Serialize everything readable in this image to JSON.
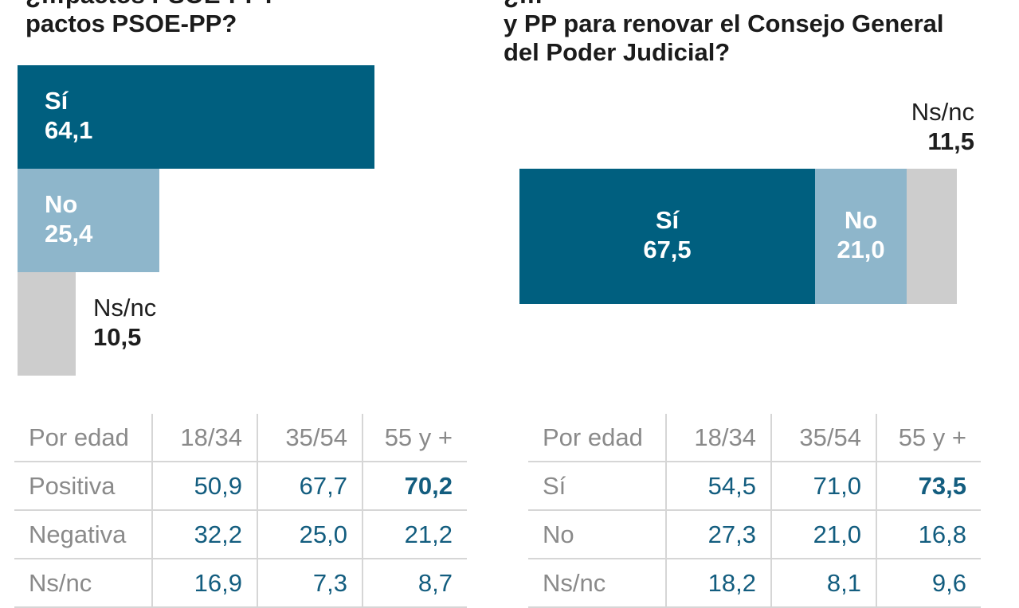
{
  "chart_data": [
    {
      "type": "bar",
      "title_lines": [
        "¿…pactos PSOE-PP?",
        "pactos PSOE-PP?"
      ],
      "categories": [
        "Sí",
        "No",
        "Ns/nc"
      ],
      "values": [
        "64,1",
        "25,4",
        "10,5"
      ],
      "numeric_values": [
        64.1,
        25.4,
        10.5
      ],
      "colors": [
        "#005f7f",
        "#8eb6cb",
        "#cdcdcd"
      ],
      "breakdown": {
        "header": [
          "Por edad",
          "18/34",
          "35/54",
          "55 y +"
        ],
        "rows": [
          {
            "label": "Positiva",
            "values": [
              "50,9",
              "67,7",
              "70,2"
            ],
            "highlight": 2
          },
          {
            "label": "Negativa",
            "values": [
              "32,2",
              "25,0",
              "21,2"
            ],
            "highlight": -1
          },
          {
            "label": "Ns/nc",
            "values": [
              "16,9",
              "7,3",
              "8,7"
            ],
            "highlight": -1
          }
        ]
      }
    },
    {
      "type": "bar",
      "title_lines": [
        "¿…",
        "y PP para renovar el Consejo General",
        " del Poder Judicial?"
      ],
      "categories": [
        "Sí",
        "No",
        "Ns/nc"
      ],
      "values": [
        "67,5",
        "21,0",
        "11,5"
      ],
      "numeric_values": [
        67.5,
        21.0,
        11.5
      ],
      "colors": [
        "#005f7f",
        "#8eb6cb",
        "#cdcdcd"
      ],
      "breakdown": {
        "header": [
          "Por edad",
          "18/34",
          "35/54",
          "55 y +"
        ],
        "rows": [
          {
            "label": "Sí",
            "values": [
              "54,5",
              "71,0",
              "73,5"
            ],
            "highlight": 2
          },
          {
            "label": "No",
            "values": [
              "27,3",
              "21,0",
              "16,8"
            ],
            "highlight": -1
          },
          {
            "label": "Ns/nc",
            "values": [
              "18,2",
              "8,1",
              "9,6"
            ],
            "highlight": -1
          }
        ]
      }
    }
  ]
}
